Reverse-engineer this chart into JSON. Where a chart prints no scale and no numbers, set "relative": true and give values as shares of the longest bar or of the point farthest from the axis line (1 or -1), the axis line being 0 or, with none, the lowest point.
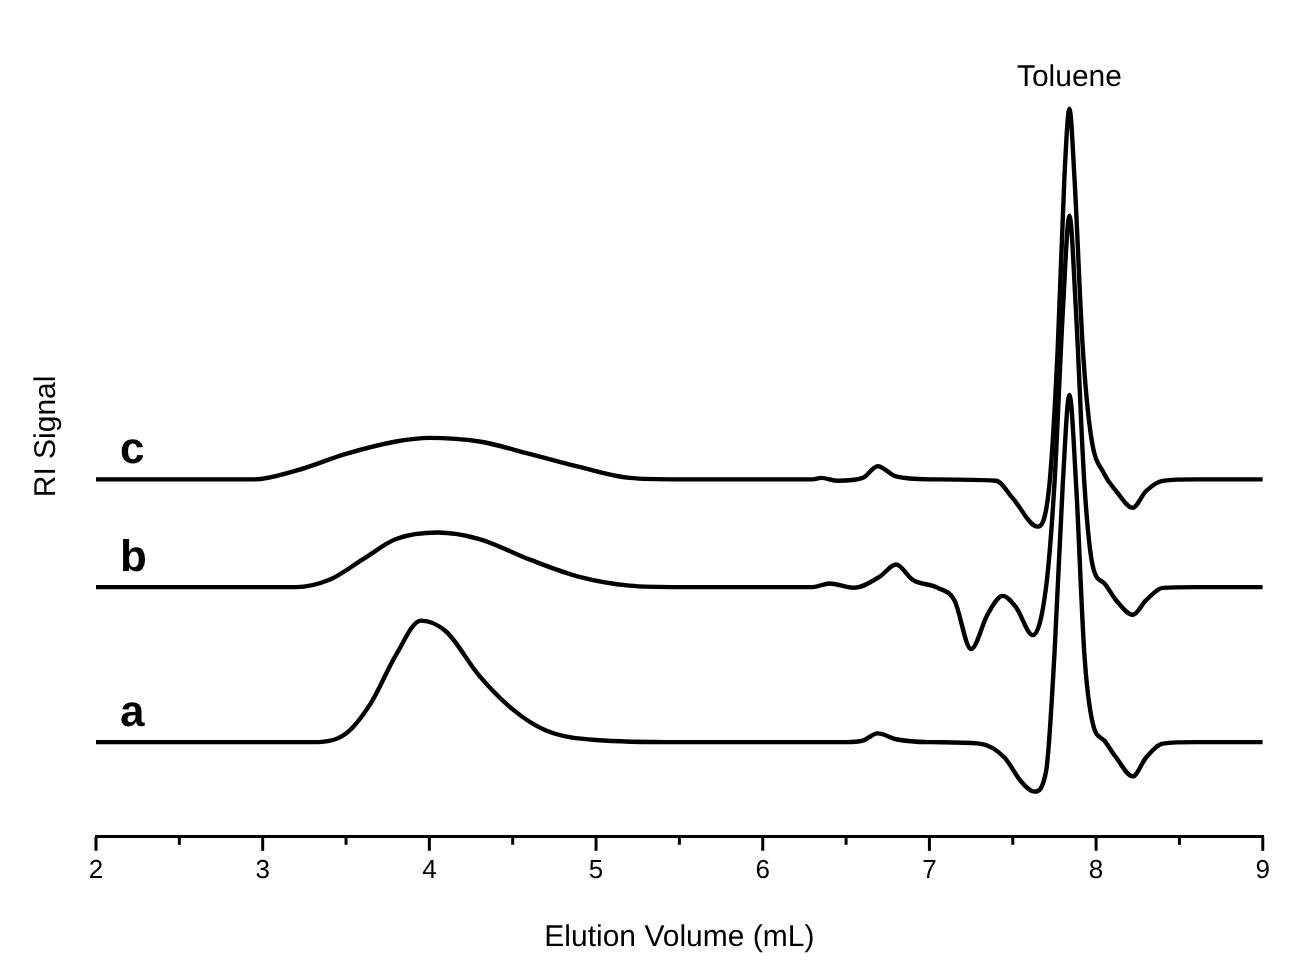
{
  "chart_data": {
    "type": "line",
    "relative": true,
    "xlabel": "Elution Volume (mL)",
    "ylabel": "RI Signal",
    "xlim": [
      2,
      9
    ],
    "xticks": [
      2,
      {
        "value": 2.5,
        "label": null
      },
      3,
      {
        "value": 3.5,
        "label": null
      },
      4,
      {
        "value": 4.5,
        "label": null
      },
      5,
      {
        "value": 5.5,
        "label": null
      },
      6,
      {
        "value": 6.5,
        "label": null
      },
      7,
      {
        "value": 7.5,
        "label": null
      },
      8,
      {
        "value": 8.5,
        "label": null
      },
      9
    ],
    "tick_labels": "x",
    "grid": false,
    "legend": false,
    "marker": "none",
    "line_style": "solid",
    "annotations": [
      {
        "text": "Toluene",
        "x": 7.84,
        "y": 1
      }
    ],
    "series": [
      {
        "name": "a",
        "color": "#000000",
        "x": [
          2,
          3.3,
          3.5,
          3.65,
          3.8,
          3.95,
          4.1,
          4.3,
          4.5,
          4.7,
          5.0,
          5.5,
          6.5,
          6.6,
          6.69,
          6.8,
          7.0,
          7.3,
          7.45,
          7.55,
          7.63,
          7.7,
          7.75,
          7.8,
          7.84,
          7.88,
          7.93,
          7.98,
          8.05,
          8.12,
          8.22,
          8.3,
          8.4,
          8.6,
          9
        ],
        "values": [
          0.13,
          0.13,
          0.142,
          0.184,
          0.25,
          0.297,
          0.282,
          0.221,
          0.175,
          0.146,
          0.133,
          0.13,
          0.13,
          0.132,
          0.142,
          0.134,
          0.13,
          0.128,
          0.109,
          0.076,
          0.062,
          0.09,
          0.25,
          0.484,
          0.607,
          0.484,
          0.25,
          0.156,
          0.132,
          0.109,
          0.083,
          0.109,
          0.128,
          0.13,
          0.13
        ]
      },
      {
        "name": "b",
        "color": "#000000",
        "x": [
          2,
          3.2,
          3.4,
          3.6,
          3.8,
          4.05,
          4.3,
          4.6,
          4.9,
          5.2,
          5.5,
          6.3,
          6.4,
          6.55,
          6.7,
          6.8,
          6.9,
          7.05,
          7.15,
          7.25,
          7.35,
          7.44,
          7.52,
          7.62,
          7.7,
          7.75,
          7.8,
          7.84,
          7.88,
          7.93,
          7.98,
          8.05,
          8.12,
          8.22,
          8.3,
          8.4,
          8.6,
          9
        ],
        "values": [
          0.343,
          0.343,
          0.353,
          0.381,
          0.409,
          0.418,
          0.409,
          0.381,
          0.357,
          0.345,
          0.343,
          0.343,
          0.348,
          0.342,
          0.357,
          0.374,
          0.353,
          0.342,
          0.325,
          0.258,
          0.306,
          0.331,
          0.315,
          0.277,
          0.343,
          0.484,
          0.719,
          0.853,
          0.719,
          0.484,
          0.372,
          0.348,
          0.325,
          0.305,
          0.325,
          0.342,
          0.343,
          0.343
        ]
      },
      {
        "name": "c",
        "color": "#000000",
        "x": [
          2,
          2.95,
          3.2,
          3.5,
          3.8,
          4.0,
          4.3,
          4.6,
          4.9,
          5.2,
          5.5,
          6.3,
          6.35,
          6.45,
          6.6,
          6.69,
          6.8,
          7.0,
          7.4,
          7.5,
          7.65,
          7.72,
          7.77,
          7.81,
          7.84,
          7.87,
          7.92,
          7.97,
          8.05,
          8.12,
          8.22,
          8.3,
          8.4,
          8.6,
          9
        ],
        "values": [
          0.491,
          0.491,
          0.503,
          0.526,
          0.543,
          0.548,
          0.543,
          0.526,
          0.508,
          0.493,
          0.491,
          0.491,
          0.493,
          0.489,
          0.493,
          0.509,
          0.495,
          0.491,
          0.489,
          0.465,
          0.426,
          0.484,
          0.672,
          0.906,
          1,
          0.906,
          0.672,
          0.55,
          0.498,
          0.475,
          0.452,
          0.475,
          0.489,
          0.491,
          0.491
        ]
      }
    ]
  }
}
